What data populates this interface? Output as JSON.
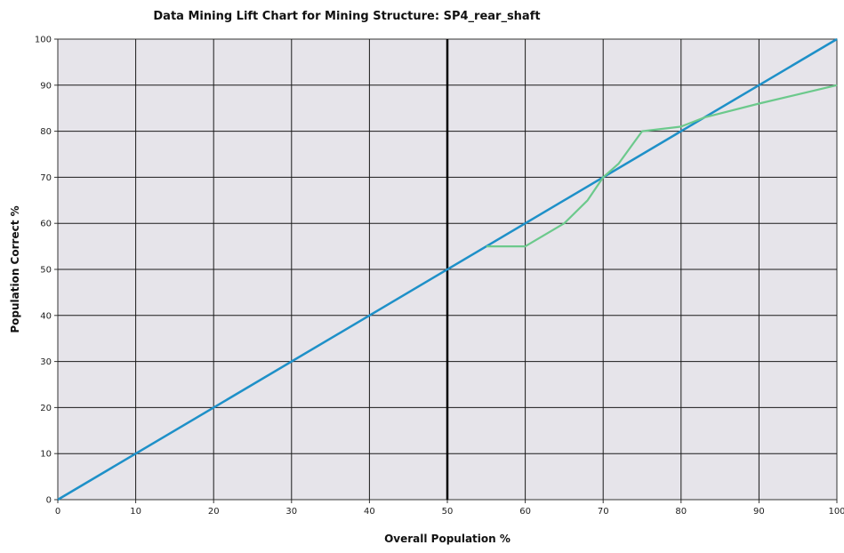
{
  "chart_data": {
    "type": "line",
    "title": "Data Mining Lift Chart for Mining Structure: SP4_rear_shaft",
    "xlabel": "Overall Population %",
    "ylabel": "Population Correct %",
    "xlim": [
      0,
      100
    ],
    "ylim": [
      0,
      100
    ],
    "x_ticks": [
      0,
      10,
      20,
      30,
      40,
      50,
      60,
      70,
      80,
      90,
      100
    ],
    "y_ticks": [
      0,
      10,
      20,
      30,
      40,
      50,
      60,
      70,
      80,
      90,
      100
    ],
    "grid": true,
    "legend": "none",
    "reference_line_x": 50,
    "series": [
      {
        "color": "#1e90c8",
        "points": [
          [
            0,
            0
          ],
          [
            100,
            100
          ]
        ]
      },
      {
        "color": "#6cc98c",
        "points": [
          [
            55,
            55
          ],
          [
            60,
            55
          ],
          [
            65,
            60
          ],
          [
            68,
            65
          ],
          [
            70,
            70
          ],
          [
            72,
            73
          ],
          [
            75,
            80
          ],
          [
            80,
            81
          ],
          [
            83,
            83
          ],
          [
            90,
            86
          ],
          [
            100,
            90
          ]
        ]
      }
    ],
    "colors": {
      "plot_background": "#e6e4ea",
      "grid": "#1a1a1a",
      "reference_line": "#000000"
    }
  }
}
